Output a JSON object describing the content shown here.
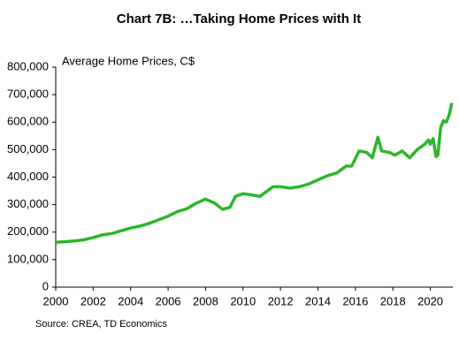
{
  "chart_data": {
    "type": "line",
    "title": "Chart 7B: …Taking Home Prices with It",
    "y_label": "Average Home Prices, C$",
    "source": "Source:  CREA,  TD Economics",
    "x": [
      2000,
      2000.5,
      2001,
      2001.5,
      2002,
      2002.5,
      2003,
      2003.5,
      2004,
      2004.5,
      2005,
      2005.5,
      2006,
      2006.5,
      2007,
      2007.5,
      2008,
      2008.5,
      2008.9,
      2009.3,
      2009.6,
      2010,
      2010.5,
      2010.9,
      2011.3,
      2011.6,
      2012,
      2012.5,
      2013,
      2013.5,
      2014,
      2014.5,
      2015,
      2015.5,
      2015.8,
      2016.2,
      2016.6,
      2016.9,
      2017.2,
      2017.4,
      2017.8,
      2018.1,
      2018.5,
      2018.9,
      2019.3,
      2019.7,
      2019.9,
      2020,
      2020.15,
      2020.3,
      2020.4,
      2020.55,
      2020.7,
      2020.85,
      2021,
      2021.15
    ],
    "series": [
      {
        "name": "Average Home Prices",
        "color": "#2db52d",
        "values": [
          163000,
          165000,
          168000,
          172000,
          180000,
          190000,
          195000,
          205000,
          215000,
          222000,
          232000,
          245000,
          258000,
          275000,
          285000,
          305000,
          320000,
          305000,
          283000,
          290000,
          330000,
          340000,
          335000,
          330000,
          350000,
          365000,
          365000,
          360000,
          365000,
          375000,
          390000,
          405000,
          415000,
          440000,
          440000,
          495000,
          490000,
          470000,
          545000,
          495000,
          490000,
          480000,
          495000,
          470000,
          500000,
          520000,
          535000,
          520000,
          540000,
          475000,
          480000,
          580000,
          605000,
          600000,
          625000,
          670000
        ]
      }
    ],
    "xlim": [
      2000,
      2021.2
    ],
    "xticks": [
      2000,
      2002,
      2004,
      2006,
      2008,
      2010,
      2012,
      2014,
      2016,
      2018,
      2020
    ],
    "ylim": [
      0,
      800000
    ],
    "yticks": [
      0,
      {
        "value": 100000,
        "label": "100,000"
      },
      {
        "value": 200000,
        "label": "200,000"
      },
      {
        "value": 300000,
        "label": "300,000"
      },
      {
        "value": 400000,
        "label": "400,000"
      },
      {
        "value": 500000,
        "label": "500,000"
      },
      {
        "value": 600000,
        "label": "600,000"
      },
      {
        "value": 700000,
        "label": "700,000"
      },
      {
        "value": 800000,
        "label": "800,000"
      }
    ],
    "grid": false
  }
}
